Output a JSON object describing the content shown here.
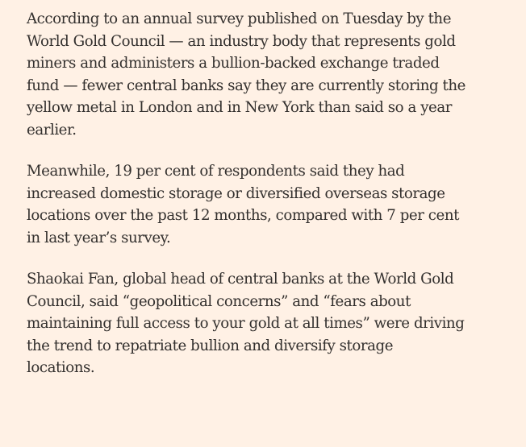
{
  "article": {
    "paragraphs": [
      "According to an annual survey published on Tuesday by the\nWorld Gold Council — an industry body that represents gold\nminers and administers a bullion-backed exchange traded\nfund — fewer central banks say they are currently storing the\nyellow metal in London and in New York than said so a year\nearlier.",
      "Meanwhile, 19 per cent of respondents said they had\nincreased domestic storage or diversified overseas storage\nlocations over the past 12 months, compared with 7 per cent\nin last year’s survey.",
      "Shaokai Fan, global head of central banks at the World Gold\nCouncil, said “geopolitical concerns” and “fears about\nmaintaining full access to your gold at all times” were driving\nthe trend to repatriate bullion and diversify storage\nlocations."
    ]
  }
}
